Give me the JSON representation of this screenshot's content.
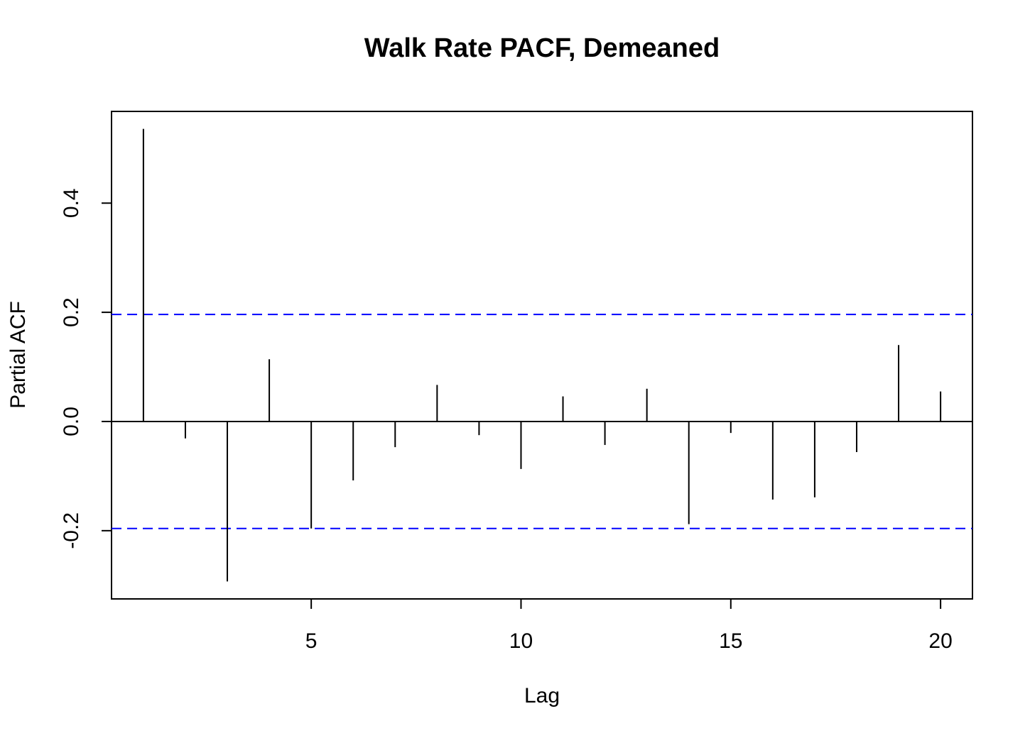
{
  "chart_data": {
    "type": "bar",
    "title": "Walk Rate PACF, Demeaned",
    "xlabel": "Lag",
    "ylabel": "Partial ACF",
    "x": [
      1,
      2,
      3,
      4,
      5,
      6,
      7,
      8,
      9,
      10,
      11,
      12,
      13,
      14,
      15,
      16,
      17,
      18,
      19,
      20
    ],
    "values": [
      0.536,
      -0.031,
      -0.293,
      0.114,
      -0.196,
      -0.108,
      -0.047,
      0.067,
      -0.025,
      -0.087,
      0.046,
      -0.043,
      0.06,
      -0.188,
      -0.021,
      -0.143,
      -0.139,
      -0.056,
      0.14,
      0.055
    ],
    "confidence_bound": 0.196,
    "xlim": [
      0.24,
      20.76
    ],
    "ylim": [
      -0.325,
      0.568
    ],
    "xticks": [
      5,
      10,
      15,
      20
    ],
    "yticks": [
      -0.2,
      0.0,
      0.2,
      0.4
    ],
    "xtick_labels": [
      "5",
      "10",
      "15",
      "20"
    ],
    "ytick_labels": [
      "-0.2",
      "0.0",
      "0.2",
      "0.4"
    ],
    "colors": {
      "bars": "#000000",
      "confidence_lines": "#0000ff",
      "zero_line": "#000000"
    },
    "grid": false
  }
}
